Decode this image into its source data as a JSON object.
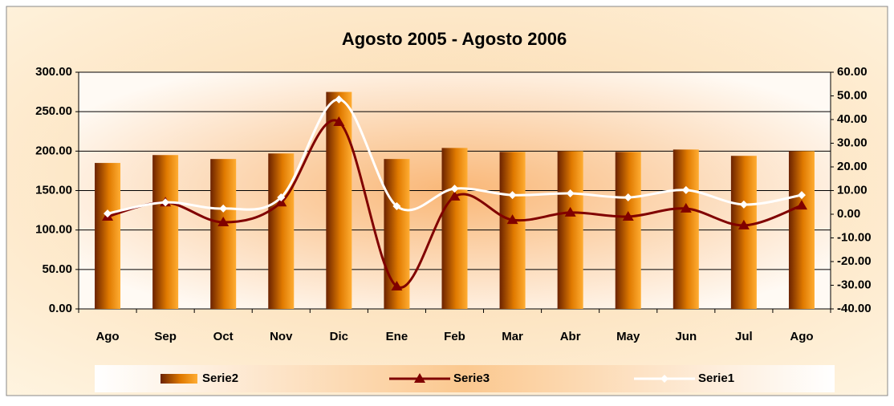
{
  "chart_data": {
    "type": "bar_line",
    "title": "Agosto 2005 - Agosto 2006",
    "categories": [
      "Ago",
      "Sep",
      "Oct",
      "Nov",
      "Dic",
      "Ene",
      "Feb",
      "Mar",
      "Abr",
      "May",
      "Jun",
      "Jul",
      "Ago"
    ],
    "series": [
      {
        "name": "Serie2",
        "type": "bar",
        "color": "#ff9900",
        "values": [
          185,
          195,
          190,
          197,
          275,
          190,
          204,
          199,
          200,
          199,
          202,
          194,
          200
        ]
      },
      {
        "name": "Serie3",
        "type": "line",
        "axis": "y2",
        "color": "#800000",
        "values": [
          -1,
          5,
          -3.4,
          5,
          39,
          -30.5,
          7.5,
          -2.4,
          0.7,
          -1,
          2.4,
          -4.7,
          3.7
        ]
      },
      {
        "name": "Serie1",
        "type": "line",
        "axis": "y2",
        "color": "#ffffff",
        "values": [
          0.3,
          5,
          2.4,
          7.1,
          48.5,
          3.4,
          10.8,
          8.1,
          8.8,
          7.1,
          10.2,
          4.1,
          8.1
        ]
      }
    ],
    "ylim": [
      0,
      300
    ],
    "yticks": [
      {
        "value": 0,
        "label": "0.00"
      },
      {
        "value": 50,
        "label": "50.00"
      },
      {
        "value": 100,
        "label": "100.00"
      },
      {
        "value": 150,
        "label": "150.00"
      },
      {
        "value": 200,
        "label": "200.00"
      },
      {
        "value": 250,
        "label": "250.00"
      },
      {
        "value": 300,
        "label": "300.00"
      }
    ],
    "y2lim": [
      -40,
      60
    ],
    "y2ticks": [
      {
        "value": -40,
        "label": "-40.00"
      },
      {
        "value": -30,
        "label": "-30.00"
      },
      {
        "value": -20,
        "label": "-20.00"
      },
      {
        "value": -10,
        "label": "-10.00"
      },
      {
        "value": 0,
        "label": "0.00"
      },
      {
        "value": 10,
        "label": "10.00"
      },
      {
        "value": 20,
        "label": "20.00"
      },
      {
        "value": 30,
        "label": "30.00"
      },
      {
        "value": 40,
        "label": "40.00"
      },
      {
        "value": 50,
        "label": "50.00"
      },
      {
        "value": 60,
        "label": "60.00"
      }
    ],
    "grid": true,
    "legend": "bottom"
  }
}
